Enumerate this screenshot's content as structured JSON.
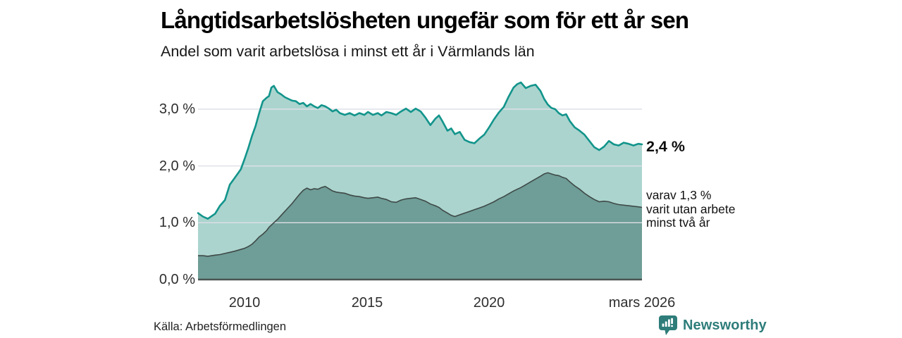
{
  "header": {
    "title": "Långtidsarbetslösheten ungefär som för ett år sen",
    "subtitle": "Andel som varit arbetslösa i minst ett år i Värmlands län"
  },
  "footer": {
    "source": "Källa: Arbetsförmedlingen",
    "brand": "Newsworthy"
  },
  "colors": {
    "line_total": "#12948b",
    "fill_total": "#abd4ce",
    "line_two_years": "#3e4947",
    "fill_two_years": "#6f9d97",
    "grid": "#dfe0e7",
    "baseline": "#4a5553",
    "brand_teal": "#2e7d7a",
    "badge_teal": "#2e7d7a"
  },
  "chart_data": {
    "type": "area",
    "title": "Långtidsarbetslösheten ungefär som för ett år sen",
    "subtitle": "Andel som varit arbetslösa i minst ett år i Värmlands län",
    "x_unit": "decimal_year",
    "xlim": [
      2008.1,
      2026.25
    ],
    "ylim": [
      0,
      3.6
    ],
    "grid": true,
    "x": [
      2008.1,
      2008.3,
      2008.5,
      2008.8,
      2009.0,
      2009.2,
      2009.4,
      2009.6,
      2009.85,
      2010.0,
      2010.15,
      2010.3,
      2010.45,
      2010.6,
      2010.75,
      2010.9,
      2011.0,
      2011.1,
      2011.2,
      2011.35,
      2011.5,
      2011.65,
      2011.8,
      2011.95,
      2012.1,
      2012.25,
      2012.4,
      2012.55,
      2012.7,
      2012.85,
      2013.0,
      2013.15,
      2013.3,
      2013.45,
      2013.6,
      2013.75,
      2013.9,
      2014.1,
      2014.3,
      2014.5,
      2014.7,
      2014.9,
      2015.05,
      2015.25,
      2015.45,
      2015.6,
      2015.8,
      2016.0,
      2016.2,
      2016.4,
      2016.6,
      2016.8,
      2017.0,
      2017.2,
      2017.4,
      2017.6,
      2017.8,
      2017.95,
      2018.1,
      2018.3,
      2018.45,
      2018.6,
      2018.8,
      2019.0,
      2019.2,
      2019.4,
      2019.6,
      2019.8,
      2020.0,
      2020.2,
      2020.4,
      2020.6,
      2020.8,
      2021.0,
      2021.15,
      2021.3,
      2021.5,
      2021.7,
      2021.9,
      2022.1,
      2022.25,
      2022.4,
      2022.55,
      2022.7,
      2022.85,
      2023.0,
      2023.15,
      2023.3,
      2023.5,
      2023.7,
      2023.9,
      2024.1,
      2024.3,
      2024.5,
      2024.7,
      2024.9,
      2025.1,
      2025.3,
      2025.5,
      2025.7,
      2025.9,
      2026.1,
      2026.25
    ],
    "series": [
      {
        "name": "Andel arbetslösa minst ett år",
        "end_value_label": "2,4 %",
        "values": [
          1.17,
          1.11,
          1.07,
          1.16,
          1.3,
          1.4,
          1.67,
          1.79,
          1.94,
          2.12,
          2.31,
          2.52,
          2.7,
          2.93,
          3.14,
          3.2,
          3.23,
          3.38,
          3.41,
          3.3,
          3.26,
          3.21,
          3.18,
          3.15,
          3.14,
          3.09,
          3.11,
          3.05,
          3.09,
          3.05,
          3.02,
          3.07,
          3.05,
          3.01,
          2.96,
          2.99,
          2.93,
          2.9,
          2.93,
          2.89,
          2.93,
          2.9,
          2.95,
          2.9,
          2.93,
          2.89,
          2.95,
          2.93,
          2.9,
          2.96,
          3.01,
          2.95,
          3.01,
          2.96,
          2.85,
          2.72,
          2.83,
          2.89,
          2.78,
          2.62,
          2.66,
          2.56,
          2.6,
          2.46,
          2.42,
          2.4,
          2.48,
          2.55,
          2.68,
          2.82,
          2.94,
          3.04,
          3.22,
          3.38,
          3.44,
          3.47,
          3.37,
          3.41,
          3.43,
          3.32,
          3.18,
          3.08,
          3.02,
          3.0,
          2.93,
          2.89,
          2.91,
          2.79,
          2.68,
          2.62,
          2.55,
          2.44,
          2.33,
          2.28,
          2.34,
          2.44,
          2.38,
          2.36,
          2.41,
          2.39,
          2.36,
          2.39,
          2.38
        ]
      },
      {
        "name": "varav utan arbete minst två år",
        "end_value_label": "1,3 %",
        "values": [
          0.42,
          0.42,
          0.41,
          0.43,
          0.44,
          0.46,
          0.48,
          0.5,
          0.53,
          0.55,
          0.58,
          0.62,
          0.68,
          0.75,
          0.8,
          0.86,
          0.92,
          0.96,
          1.0,
          1.06,
          1.13,
          1.2,
          1.27,
          1.34,
          1.42,
          1.5,
          1.57,
          1.61,
          1.58,
          1.6,
          1.59,
          1.62,
          1.64,
          1.6,
          1.56,
          1.54,
          1.53,
          1.52,
          1.49,
          1.47,
          1.46,
          1.44,
          1.43,
          1.44,
          1.45,
          1.43,
          1.41,
          1.37,
          1.36,
          1.4,
          1.42,
          1.43,
          1.44,
          1.41,
          1.38,
          1.33,
          1.3,
          1.27,
          1.22,
          1.17,
          1.13,
          1.11,
          1.14,
          1.17,
          1.2,
          1.23,
          1.26,
          1.29,
          1.33,
          1.37,
          1.42,
          1.46,
          1.51,
          1.56,
          1.59,
          1.62,
          1.67,
          1.72,
          1.77,
          1.82,
          1.86,
          1.88,
          1.86,
          1.84,
          1.83,
          1.8,
          1.78,
          1.72,
          1.65,
          1.59,
          1.52,
          1.46,
          1.41,
          1.37,
          1.38,
          1.37,
          1.34,
          1.32,
          1.31,
          1.3,
          1.29,
          1.28,
          1.27
        ]
      }
    ],
    "yticks": [
      {
        "value": 0,
        "label": "0,0 %"
      },
      {
        "value": 1,
        "label": "1,0 %"
      },
      {
        "value": 2,
        "label": "2,0 %"
      },
      {
        "value": 3,
        "label": "3,0 %"
      }
    ],
    "xticks": [
      {
        "x": 2010,
        "label": "2010"
      },
      {
        "x": 2015,
        "label": "2015"
      },
      {
        "x": 2020,
        "label": "2020"
      },
      {
        "x": 2026.25,
        "label": "mars 2026"
      }
    ],
    "annotations": {
      "end_value_label": "2,4 %",
      "secondary_lines": [
        "varav 1,3 %",
        "varit utan arbete",
        "minst två år"
      ]
    },
    "legend_position": "none"
  }
}
